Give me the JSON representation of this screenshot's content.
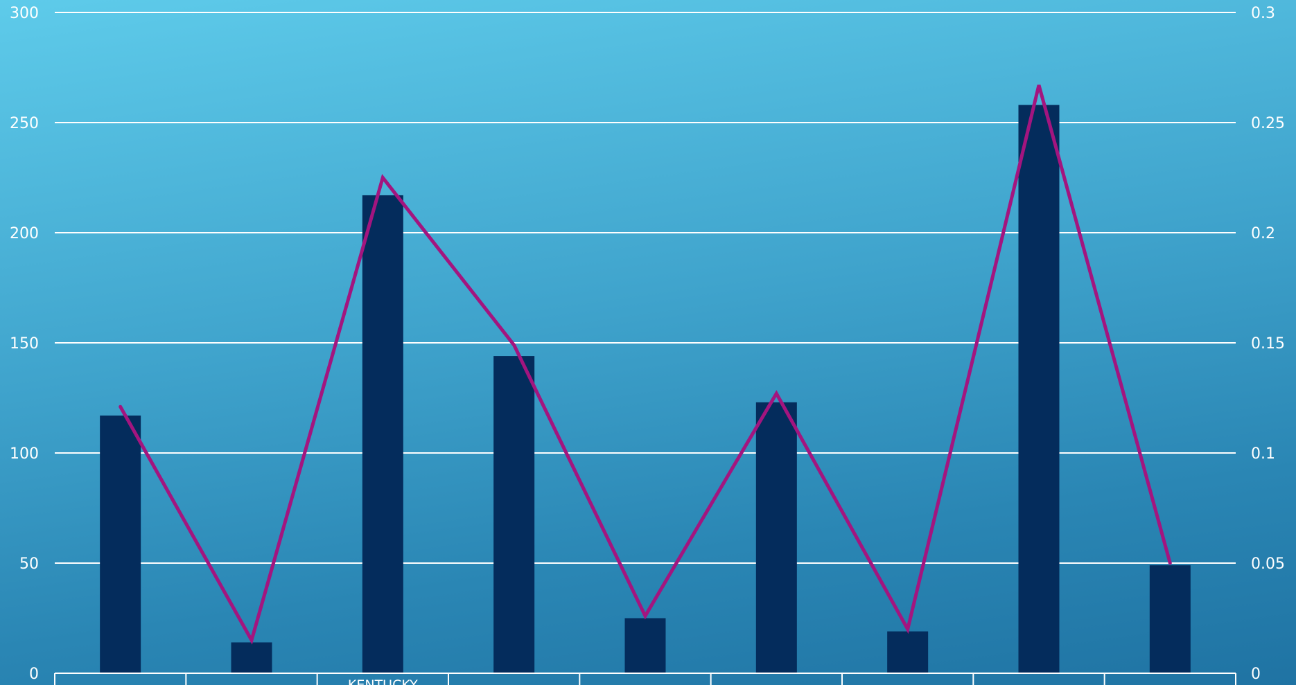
{
  "chart_data": {
    "type": "bar",
    "categories": [
      "",
      "",
      "KENTUCKY",
      "",
      "",
      "",
      "",
      "",
      ""
    ],
    "series": [
      {
        "type": "bar",
        "axis": "left",
        "color": "#042c5c",
        "values": [
          117,
          14,
          217,
          144,
          25,
          123,
          19,
          258,
          49
        ]
      },
      {
        "type": "line",
        "axis": "right",
        "color": "#a3157f",
        "values": [
          0.121,
          0.015,
          0.225,
          0.149,
          0.026,
          0.127,
          0.02,
          0.267,
          0.05
        ]
      }
    ],
    "y_left": {
      "ylim": [
        0,
        300
      ],
      "ticks": [
        "0",
        "50",
        "100",
        "150",
        "200",
        "250",
        "300"
      ]
    },
    "y_right": {
      "ylim": [
        0,
        0.3
      ],
      "ticks": [
        "0",
        "0.05",
        "0.1",
        "0.15",
        "0.2",
        "0.25",
        "0.3"
      ]
    },
    "grid": true,
    "legend": "none"
  }
}
